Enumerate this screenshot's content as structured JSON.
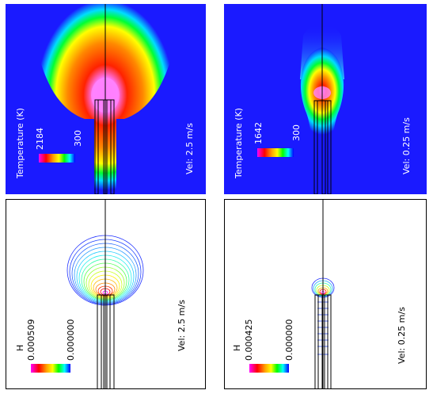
{
  "colors": {
    "field_background": "#1a1aff",
    "contour_background": "#ffffff",
    "label_on_field": "#ffffff",
    "label_on_contour": "#000000",
    "colormap": [
      "#ff00ff",
      "#ff0000",
      "#ffa500",
      "#ffff00",
      "#00ff00",
      "#00ffff",
      "#0000ff"
    ]
  },
  "panels": {
    "temp_high": {
      "legend_title": "Temperature (K)",
      "max_label": "2184",
      "min_label": "300",
      "velocity_label": "Vel: 2.5 m/s"
    },
    "temp_low": {
      "legend_title": "Temperature (K)",
      "max_label": "1642",
      "min_label": "300",
      "velocity_label": "Vel: 0.25 m/s"
    },
    "h_high": {
      "legend_title": "H",
      "max_label": "0.000509",
      "min_label": "0.000000",
      "velocity_label": "Vel: 2.5 m/s"
    },
    "h_low": {
      "legend_title": "H",
      "max_label": "0.000425",
      "min_label": "0.000000",
      "velocity_label": "Vel: 0.25 m/s"
    }
  }
}
